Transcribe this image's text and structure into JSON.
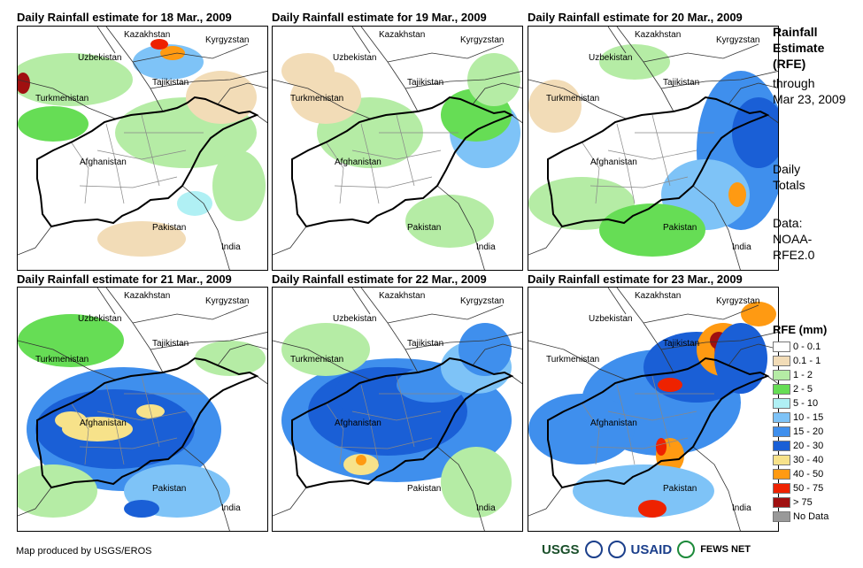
{
  "panels": [
    {
      "title": "Daily Rainfall estimate for 18 Mar., 2009"
    },
    {
      "title": "Daily Rainfall estimate for 19 Mar., 2009"
    },
    {
      "title": "Daily Rainfall estimate for 20 Mar., 2009"
    },
    {
      "title": "Daily Rainfall estimate for 21 Mar., 2009"
    },
    {
      "title": "Daily Rainfall estimate for 22 Mar., 2009"
    },
    {
      "title": "Daily Rainfall estimate for 23 Mar., 2009"
    }
  ],
  "map_labels": {
    "kazakhstan": "Kazakhstan",
    "kyrgyzstan": "Kyrgyzstan",
    "uzbekistan": "Uzbekistan",
    "tajikistan": "Tajikistan",
    "turkmenistan": "Turkmenistan",
    "afghanistan": "Afghanistan",
    "pakistan": "Pakistan",
    "india": "India"
  },
  "sidebar": {
    "title_line1": "Rainfall",
    "title_line2": "Estimate",
    "title_line3": "(RFE)",
    "through": "through",
    "date": "Mar 23, 2009",
    "daily1": "Daily",
    "daily2": "Totals",
    "data1": "Data:",
    "data2": "NOAA-",
    "data3": "RFE2.0"
  },
  "legend": {
    "title": "RFE (mm)",
    "items": [
      {
        "label": "0 - 0.1",
        "color": "#ffffff"
      },
      {
        "label": "0.1 - 1",
        "color": "#f2dcb7"
      },
      {
        "label": "1 - 2",
        "color": "#b5eca5"
      },
      {
        "label": "2 - 5",
        "color": "#66dd55"
      },
      {
        "label": "5 - 10",
        "color": "#b0f0f4"
      },
      {
        "label": "10 - 15",
        "color": "#7ec3f7"
      },
      {
        "label": "15 - 20",
        "color": "#3f8fed"
      },
      {
        "label": "20 - 30",
        "color": "#1a5fd6"
      },
      {
        "label": "30 - 40",
        "color": "#f7e28a"
      },
      {
        "label": "40 - 50",
        "color": "#ff9a12"
      },
      {
        "label": "50 - 75",
        "color": "#ee2200"
      },
      {
        "label": "> 75",
        "color": "#a01010"
      },
      {
        "label": "No Data",
        "color": "#999999"
      }
    ]
  },
  "credit": "Map produced by USGS/EROS",
  "logos": {
    "usgs": "USGS",
    "usaid": "USAID",
    "fews": "FEWS NET"
  }
}
